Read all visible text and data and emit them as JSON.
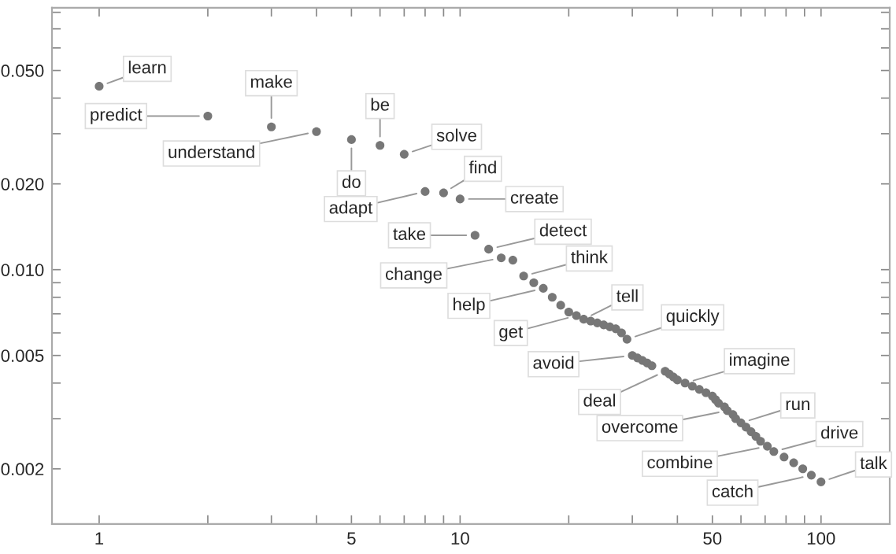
{
  "chart_data": {
    "type": "scatter",
    "log": "xy",
    "marker": "circle",
    "grid": false,
    "xlim": [
      0.74,
      155
    ],
    "ylim": [
      0.00128,
      0.083
    ],
    "xticks": [
      1,
      {
        "value": 2,
        "label": null
      },
      {
        "value": 3,
        "label": null
      },
      {
        "value": 4,
        "label": null
      },
      5,
      {
        "value": 6,
        "label": null
      },
      {
        "value": 7,
        "label": null
      },
      {
        "value": 8,
        "label": null
      },
      {
        "value": 9,
        "label": null
      },
      10,
      {
        "value": 20,
        "label": null
      },
      {
        "value": 30,
        "label": null
      },
      {
        "value": 40,
        "label": null
      },
      50,
      {
        "value": 60,
        "label": null
      },
      {
        "value": 70,
        "label": null
      },
      {
        "value": 80,
        "label": null
      },
      {
        "value": 90,
        "label": null
      },
      100
    ],
    "yticks": [
      {
        "value": 0.002,
        "label": "0.002"
      },
      {
        "value": 0.003,
        "label": null
      },
      {
        "value": 0.004,
        "label": null
      },
      {
        "value": 0.005,
        "label": "0.005"
      },
      {
        "value": 0.006,
        "label": null
      },
      {
        "value": 0.007,
        "label": null
      },
      {
        "value": 0.008,
        "label": null
      },
      {
        "value": 0.009,
        "label": null
      },
      {
        "value": 0.01,
        "label": "0.010"
      },
      {
        "value": 0.02,
        "label": "0.020"
      },
      {
        "value": 0.03,
        "label": null
      },
      {
        "value": 0.04,
        "label": null
      },
      {
        "value": 0.05,
        "label": "0.050"
      },
      {
        "value": 0.06,
        "label": null
      },
      {
        "value": 0.07,
        "label": null
      },
      {
        "value": 0.08,
        "label": null
      }
    ],
    "series": [
      {
        "color": "#777777",
        "x": [
          1,
          2,
          3,
          4,
          5,
          6,
          7,
          8,
          9,
          10,
          11,
          12,
          13,
          14,
          15,
          16,
          17,
          18,
          19,
          20,
          21,
          22,
          23,
          24,
          25,
          26,
          27,
          28,
          29,
          30,
          31,
          32,
          33,
          34,
          37,
          38,
          39,
          40,
          42,
          44,
          46,
          48,
          50,
          51,
          52,
          54,
          55,
          57,
          58,
          60,
          62,
          64,
          66,
          68,
          71,
          74,
          79,
          84,
          89,
          94,
          100
        ],
        "values": [
          0.044,
          0.0346,
          0.0317,
          0.0305,
          0.0286,
          0.0273,
          0.0254,
          0.0188,
          0.0186,
          0.0177,
          0.0132,
          0.0118,
          0.011,
          0.0108,
          0.0095,
          0.009,
          0.0086,
          0.008,
          0.0075,
          0.0071,
          0.0069,
          0.0067,
          0.0066,
          0.0065,
          0.0064,
          0.0063,
          0.0062,
          0.006,
          0.0057,
          0.005,
          0.0049,
          0.0048,
          0.0047,
          0.0046,
          0.0044,
          0.0043,
          0.0042,
          0.0041,
          0.004,
          0.0039,
          0.0038,
          0.0037,
          0.0036,
          0.0035,
          0.0034,
          0.0033,
          0.0032,
          0.0031,
          0.003,
          0.0029,
          0.0028,
          0.0027,
          0.0026,
          0.0025,
          0.0024,
          0.0023,
          0.0022,
          0.0021,
          0.002,
          0.0019,
          0.0018
        ]
      }
    ],
    "annotations": [
      {
        "text": "learn",
        "x": 1,
        "y": 0.044
      },
      {
        "text": "predict",
        "x": 2,
        "y": 0.0346
      },
      {
        "text": "make",
        "x": 3,
        "y": 0.0317
      },
      {
        "text": "understand",
        "x": 4,
        "y": 0.0305
      },
      {
        "text": "do",
        "x": 5,
        "y": 0.0286
      },
      {
        "text": "be",
        "x": 6,
        "y": 0.0273
      },
      {
        "text": "solve",
        "x": 7,
        "y": 0.0254
      },
      {
        "text": "adapt",
        "x": 8,
        "y": 0.0188
      },
      {
        "text": "find",
        "x": 9,
        "y": 0.0186
      },
      {
        "text": "create",
        "x": 10,
        "y": 0.0177
      },
      {
        "text": "take",
        "x": 11,
        "y": 0.0132
      },
      {
        "text": "detect",
        "x": 12,
        "y": 0.0118
      },
      {
        "text": "change",
        "x": 13,
        "y": 0.011
      },
      {
        "text": "think",
        "x": 15,
        "y": 0.0095
      },
      {
        "text": "help",
        "x": 17,
        "y": 0.0086
      },
      {
        "text": "tell",
        "x": 22,
        "y": 0.0067
      },
      {
        "text": "get",
        "x": 21,
        "y": 0.0069
      },
      {
        "text": "quickly",
        "x": 29,
        "y": 0.0057
      },
      {
        "text": "avoid",
        "x": 30,
        "y": 0.005
      },
      {
        "text": "deal",
        "x": 37,
        "y": 0.0044
      },
      {
        "text": "imagine",
        "x": 42,
        "y": 0.004
      },
      {
        "text": "run",
        "x": 60,
        "y": 0.0029
      },
      {
        "text": "overcome",
        "x": 55,
        "y": 0.0032
      },
      {
        "text": "drive",
        "x": 74,
        "y": 0.0023
      },
      {
        "text": "combine",
        "x": 71,
        "y": 0.0024
      },
      {
        "text": "talk",
        "x": 100,
        "y": 0.0018
      },
      {
        "text": "catch",
        "x": 94,
        "y": 0.0019
      }
    ]
  }
}
